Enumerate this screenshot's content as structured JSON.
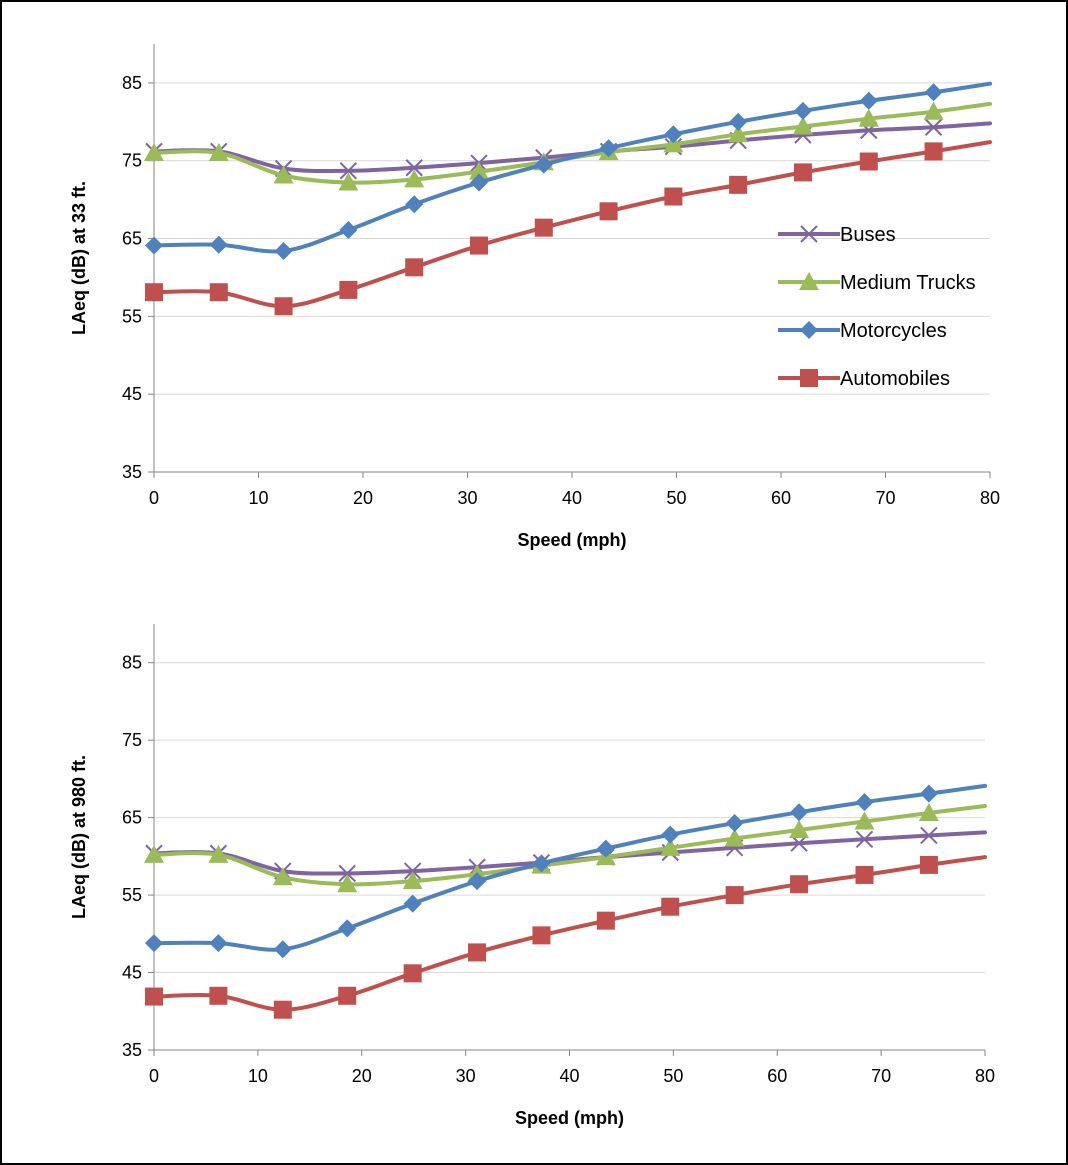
{
  "chart_data": [
    {
      "type": "line",
      "title": "",
      "xlabel": "Speed (mph)",
      "ylabel": "LAeq (dB) at 33 ft.",
      "xlim": [
        0,
        80
      ],
      "ylim": [
        35,
        90
      ],
      "xticks": [
        "0",
        "10",
        "20",
        "30",
        "40",
        "50",
        "60",
        "70",
        "80"
      ],
      "yticks": [
        "35",
        "45",
        "55",
        "65",
        "75",
        "85"
      ],
      "grid": "horizontal",
      "legend": "right",
      "series": [
        {
          "name": "Buses",
          "color": "#8064a2",
          "marker": "x",
          "x": [
            0,
            6.2,
            12.4,
            18.6,
            24.9,
            31.1,
            37.3,
            43.5,
            49.7,
            55.9,
            62.1,
            68.4,
            74.6,
            80
          ],
          "y": [
            76.2,
            76.2,
            74.0,
            73.7,
            74.1,
            74.7,
            75.4,
            76.2,
            76.8,
            77.6,
            78.3,
            78.9,
            79.3,
            79.8
          ],
          "markers": 13
        },
        {
          "name": "Medium Trucks",
          "color": "#9bbb59",
          "marker": "triangle",
          "x": [
            0,
            6.2,
            12.4,
            18.6,
            24.9,
            31.1,
            37.3,
            43.5,
            49.7,
            55.9,
            62.1,
            68.4,
            74.6,
            80
          ],
          "y": [
            76.0,
            76.0,
            73.1,
            72.2,
            72.6,
            73.6,
            74.8,
            76.1,
            77.1,
            78.4,
            79.4,
            80.4,
            81.3,
            82.3
          ],
          "markers": 13
        },
        {
          "name": "Motorcycles",
          "color": "#4f81bd",
          "marker": "diamond",
          "x": [
            0,
            6.2,
            12.4,
            18.6,
            24.9,
            31.1,
            37.3,
            43.5,
            49.7,
            55.9,
            62.1,
            68.4,
            74.6,
            80
          ],
          "y": [
            64.1,
            64.2,
            63.4,
            66.1,
            69.4,
            72.2,
            74.5,
            76.6,
            78.4,
            80.0,
            81.4,
            82.7,
            83.8,
            84.9
          ],
          "markers": 13
        },
        {
          "name": "Automobiles",
          "color": "#c0504d",
          "marker": "square",
          "x": [
            0,
            6.2,
            12.4,
            18.6,
            24.9,
            31.1,
            37.3,
            43.5,
            49.7,
            55.9,
            62.1,
            68.4,
            74.6,
            80
          ],
          "y": [
            58.1,
            58.1,
            56.3,
            58.4,
            61.3,
            64.1,
            66.4,
            68.5,
            70.4,
            71.9,
            73.5,
            74.9,
            76.2,
            77.4
          ],
          "markers": 13
        }
      ]
    },
    {
      "type": "line",
      "title": "",
      "xlabel": "Speed (mph)",
      "ylabel": "LAeq (dB) at 980 ft.",
      "xlim": [
        0,
        80
      ],
      "ylim": [
        35,
        90
      ],
      "xticks": [
        "0",
        "10",
        "20",
        "30",
        "40",
        "50",
        "60",
        "70",
        "80"
      ],
      "yticks": [
        "35",
        "45",
        "55",
        "65",
        "75",
        "85"
      ],
      "grid": "horizontal",
      "legend": "none",
      "series": [
        {
          "name": "Buses",
          "color": "#8064a2",
          "marker": "x",
          "x": [
            0,
            6.2,
            12.4,
            18.6,
            24.9,
            31.1,
            37.3,
            43.5,
            49.7,
            55.9,
            62.1,
            68.4,
            74.6,
            80
          ],
          "y": [
            60.4,
            60.4,
            58.1,
            57.8,
            58.1,
            58.6,
            59.2,
            59.9,
            60.5,
            61.1,
            61.7,
            62.2,
            62.7,
            63.1
          ],
          "markers": 13
        },
        {
          "name": "Medium Trucks",
          "color": "#9bbb59",
          "marker": "triangle",
          "x": [
            0,
            6.2,
            12.4,
            18.6,
            24.9,
            31.1,
            37.3,
            43.5,
            49.7,
            55.9,
            62.1,
            68.4,
            74.6,
            80
          ],
          "y": [
            60.2,
            60.2,
            57.3,
            56.4,
            56.8,
            57.7,
            58.8,
            59.9,
            61.1,
            62.3,
            63.4,
            64.5,
            65.6,
            66.5
          ],
          "markers": 13
        },
        {
          "name": "Motorcycles",
          "color": "#4f81bd",
          "marker": "diamond",
          "x": [
            0,
            6.2,
            12.4,
            18.6,
            24.9,
            31.1,
            37.3,
            43.5,
            49.7,
            55.9,
            62.1,
            68.4,
            74.6,
            80
          ],
          "y": [
            48.8,
            48.8,
            48.0,
            50.7,
            53.9,
            56.8,
            59.1,
            61.0,
            62.8,
            64.3,
            65.7,
            67.0,
            68.1,
            69.1
          ],
          "markers": 13
        },
        {
          "name": "Automobiles",
          "color": "#c0504d",
          "marker": "square",
          "x": [
            0,
            6.2,
            12.4,
            18.6,
            24.9,
            31.1,
            37.3,
            43.5,
            49.7,
            55.9,
            62.1,
            68.4,
            74.6,
            80
          ],
          "y": [
            41.9,
            42.0,
            40.2,
            42.0,
            44.9,
            47.6,
            49.8,
            51.7,
            53.5,
            55.0,
            56.4,
            57.6,
            58.9,
            59.9
          ],
          "markers": 13
        }
      ]
    }
  ]
}
